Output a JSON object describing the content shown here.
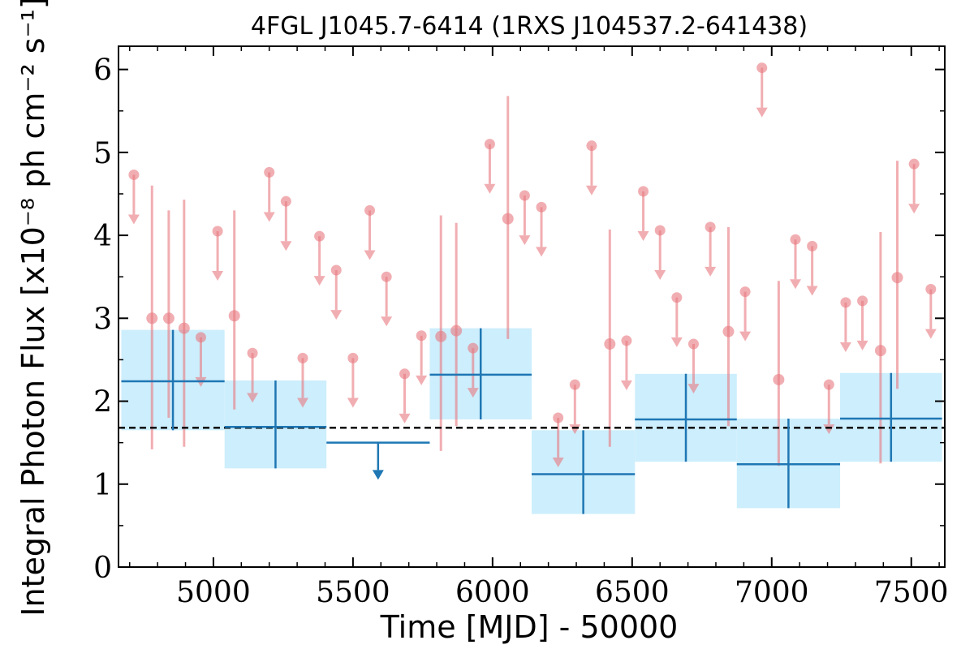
{
  "chart_data": {
    "type": "scatter",
    "title": "4FGL J1045.7-6414 (1RXS J104537.2-641438)",
    "xlabel": "Time [MJD] - 50000",
    "ylabel": "Integral Photon Flux [x10⁻⁸ ph cm⁻² s⁻¹]",
    "xlim": [
      4660,
      7620
    ],
    "ylim": [
      0,
      6.28
    ],
    "xticks": [
      5000,
      5500,
      6000,
      6500,
      7000,
      7500
    ],
    "yticks": [
      0,
      1,
      2,
      3,
      4,
      5,
      6
    ],
    "grid": false,
    "reference_line": {
      "y": 1.68,
      "style": "dashed",
      "color": "#000000"
    },
    "series": [
      {
        "marker": "circle",
        "color": "#e8787e",
        "points": [
          {
            "x": 4780,
            "y": 3.0,
            "lo": 1.42,
            "hi": 4.6
          },
          {
            "x": 4840,
            "y": 3.0,
            "lo": 1.8,
            "hi": 4.3
          },
          {
            "x": 4895,
            "y": 2.88,
            "lo": 1.45,
            "hi": 4.43
          },
          {
            "x": 5075,
            "y": 3.03,
            "lo": 1.9,
            "hi": 4.3
          },
          {
            "x": 5815,
            "y": 2.78,
            "lo": 1.4,
            "hi": 4.24
          },
          {
            "x": 5870,
            "y": 2.85,
            "lo": 1.7,
            "hi": 4.15
          },
          {
            "x": 6055,
            "y": 4.2,
            "lo": 2.75,
            "hi": 5.68
          },
          {
            "x": 6420,
            "y": 2.69,
            "lo": 1.45,
            "hi": 4.07
          },
          {
            "x": 6845,
            "y": 2.84,
            "lo": 1.7,
            "hi": 4.1
          },
          {
            "x": 7025,
            "y": 2.26,
            "lo": 1.22,
            "hi": 3.45
          },
          {
            "x": 7390,
            "y": 2.61,
            "lo": 1.25,
            "hi": 4.04
          },
          {
            "x": 7450,
            "y": 3.49,
            "lo": 2.15,
            "hi": 4.9
          }
        ]
      },
      {
        "marker": "upper-limit",
        "color": "#e8787e",
        "points": [
          {
            "x": 4715,
            "y": 4.73
          },
          {
            "x": 4955,
            "y": 2.77
          },
          {
            "x": 5015,
            "y": 4.05
          },
          {
            "x": 5140,
            "y": 2.58
          },
          {
            "x": 5200,
            "y": 4.76
          },
          {
            "x": 5260,
            "y": 4.41
          },
          {
            "x": 5320,
            "y": 2.52
          },
          {
            "x": 5380,
            "y": 3.99
          },
          {
            "x": 5440,
            "y": 3.58
          },
          {
            "x": 5500,
            "y": 2.52
          },
          {
            "x": 5560,
            "y": 4.3
          },
          {
            "x": 5620,
            "y": 3.5
          },
          {
            "x": 5685,
            "y": 2.33
          },
          {
            "x": 5745,
            "y": 2.79
          },
          {
            "x": 5930,
            "y": 2.64
          },
          {
            "x": 5990,
            "y": 5.1
          },
          {
            "x": 6115,
            "y": 4.48
          },
          {
            "x": 6175,
            "y": 4.34
          },
          {
            "x": 6235,
            "y": 1.8
          },
          {
            "x": 6295,
            "y": 2.2
          },
          {
            "x": 6355,
            "y": 5.08
          },
          {
            "x": 6480,
            "y": 2.73
          },
          {
            "x": 6540,
            "y": 4.53
          },
          {
            "x": 6600,
            "y": 4.06
          },
          {
            "x": 6660,
            "y": 3.25
          },
          {
            "x": 6720,
            "y": 2.69
          },
          {
            "x": 6780,
            "y": 4.1
          },
          {
            "x": 6905,
            "y": 3.32
          },
          {
            "x": 6965,
            "y": 6.02
          },
          {
            "x": 7085,
            "y": 3.95
          },
          {
            "x": 7145,
            "y": 3.87
          },
          {
            "x": 7205,
            "y": 2.2
          },
          {
            "x": 7265,
            "y": 3.19
          },
          {
            "x": 7325,
            "y": 3.21
          },
          {
            "x": 7510,
            "y": 4.86
          },
          {
            "x": 7570,
            "y": 3.35
          }
        ]
      },
      {
        "marker": "binned",
        "color": "#1f77b4",
        "band_color": "#cdeefc",
        "bins": [
          {
            "x0": 4670,
            "x1": 5040,
            "y": 2.24,
            "lo": 1.65,
            "hi": 2.86,
            "upper_limit": false
          },
          {
            "x0": 5040,
            "x1": 5405,
            "y": 1.69,
            "lo": 1.19,
            "hi": 2.25,
            "upper_limit": false
          },
          {
            "x0": 5405,
            "x1": 5775,
            "y": 1.5,
            "upper_limit": true
          },
          {
            "x0": 5775,
            "x1": 6140,
            "y": 2.32,
            "lo": 1.78,
            "hi": 2.88,
            "upper_limit": false
          },
          {
            "x0": 6140,
            "x1": 6510,
            "y": 1.12,
            "lo": 0.64,
            "hi": 1.65,
            "upper_limit": false
          },
          {
            "x0": 6510,
            "x1": 6875,
            "y": 1.78,
            "lo": 1.27,
            "hi": 2.33,
            "upper_limit": false
          },
          {
            "x0": 6875,
            "x1": 7245,
            "y": 1.24,
            "lo": 0.71,
            "hi": 1.79,
            "upper_limit": false
          },
          {
            "x0": 7245,
            "x1": 7610,
            "y": 1.79,
            "lo": 1.27,
            "hi": 2.34,
            "upper_limit": false
          }
        ]
      }
    ]
  }
}
